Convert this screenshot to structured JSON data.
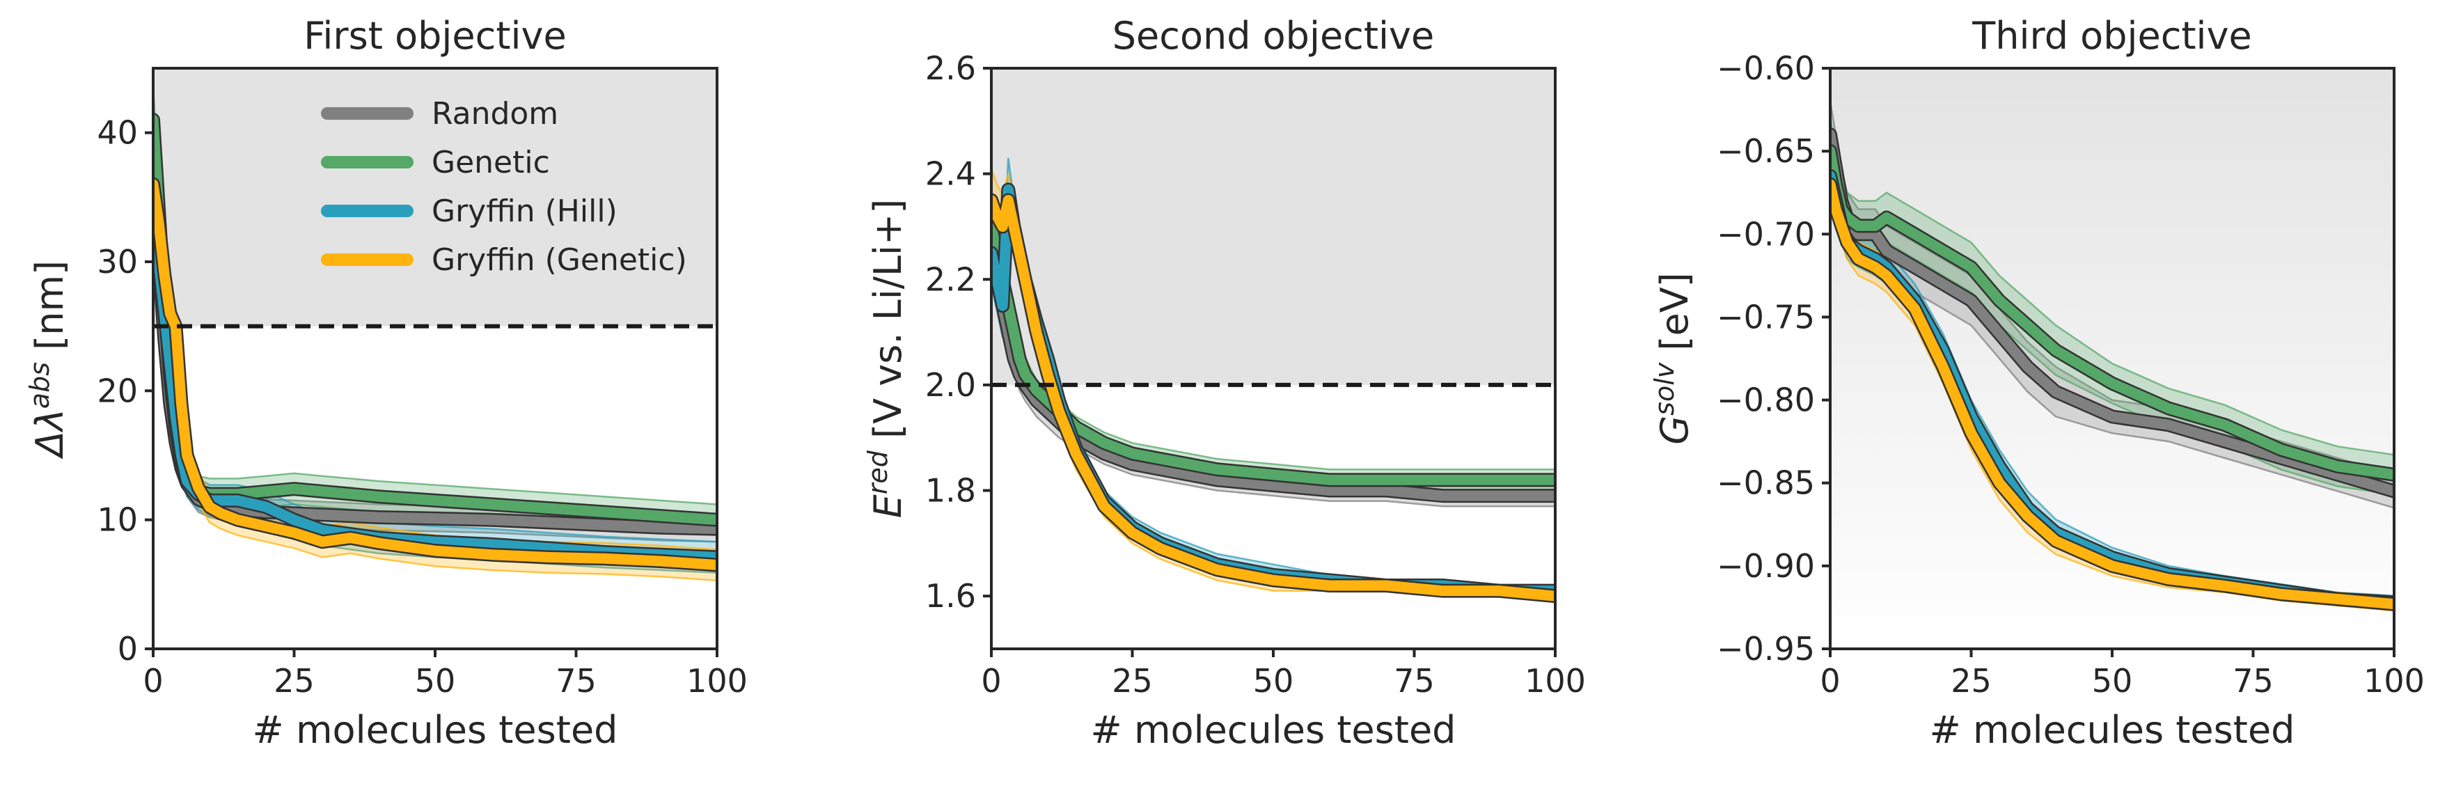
{
  "chart_data": [
    {
      "type": "line",
      "title": "First objective",
      "xlabel": "# molecules tested",
      "ylabel": {
        "base": "Δλ",
        "sup": "abs",
        "suffix": " [nm]"
      },
      "xlim": [
        0,
        100
      ],
      "ylim": [
        0,
        45
      ],
      "xticks": [
        "0",
        "25",
        "50",
        "75",
        "100"
      ],
      "yticks": [
        "0",
        "10",
        "20",
        "30",
        "40"
      ],
      "threshold": 25,
      "shaded_region": [
        25,
        45
      ],
      "legend": {
        "placement": "top-right",
        "entries": [
          "Random",
          "Genetic",
          "Gryffin (Hill)",
          "Gryffin (Genetic)"
        ]
      },
      "series": [
        {
          "name": "Random",
          "color": "#808080",
          "x": [
            0,
            1,
            2,
            3,
            4,
            5,
            6,
            8,
            10,
            12,
            15,
            20,
            25,
            30,
            40,
            50,
            60,
            70,
            80,
            90,
            100
          ],
          "y": [
            37,
            30,
            24,
            19,
            16,
            14,
            12.8,
            11.6,
            11.2,
            11,
            10.8,
            10.6,
            10.5,
            10.4,
            10.2,
            10.1,
            10,
            9.8,
            9.6,
            9.4,
            9.3
          ],
          "band": [
            1.0,
            1.2,
            1.2,
            1.2,
            1.1,
            1.0,
            1.0,
            1.0,
            1.0,
            1.0,
            1.0,
            1.0,
            1.0,
            1.0,
            1.0,
            1.0,
            1.0,
            1.0,
            1.0,
            1.0,
            1.0
          ]
        },
        {
          "name": "Genetic",
          "color": "#55a868",
          "x": [
            0,
            1,
            2,
            3,
            4,
            5,
            6,
            8,
            10,
            12,
            15,
            20,
            25,
            30,
            40,
            50,
            60,
            70,
            80,
            90,
            100
          ],
          "y": [
            41,
            34,
            27,
            21,
            17,
            14.5,
            13,
            12.2,
            12,
            12,
            12,
            12.2,
            12.4,
            12.2,
            11.8,
            11.5,
            11.2,
            10.9,
            10.6,
            10.3,
            10
          ],
          "band": [
            2.5,
            2.5,
            2.0,
            1.8,
            1.5,
            1.2,
            1.2,
            1.2,
            1.2,
            1.2,
            1.2,
            1.2,
            1.2,
            1.2,
            1.2,
            1.2,
            1.2,
            1.2,
            1.2,
            1.2,
            1.2
          ]
        },
        {
          "name": "Gryffin (Hill)",
          "color": "#2a9fbc",
          "x": [
            0,
            1,
            2,
            3,
            4,
            5,
            6,
            8,
            10,
            12,
            15,
            20,
            25,
            30,
            40,
            50,
            60,
            70,
            80,
            90,
            100
          ],
          "y": [
            35,
            30,
            26,
            22,
            18,
            15,
            13,
            12,
            11.5,
            11.5,
            11.5,
            11,
            10,
            9.2,
            8.6,
            8.3,
            8.1,
            7.8,
            7.5,
            7.3,
            7.1
          ],
          "band": [
            1.5,
            1.5,
            1.4,
            1.3,
            1.2,
            1.2,
            1.2,
            1.2,
            1.2,
            1.2,
            1.2,
            1.2,
            1.2,
            1.2,
            1.2,
            1.2,
            1.2,
            1.2,
            1.2,
            1.2,
            1.2
          ]
        },
        {
          "name": "Gryffin (Genetic)",
          "color": "#ffb30f",
          "x": [
            0,
            1,
            2,
            3,
            4,
            5,
            6,
            8,
            10,
            12,
            15,
            20,
            25,
            30,
            35,
            40,
            50,
            60,
            70,
            80,
            90,
            100
          ],
          "y": [
            36,
            33,
            29,
            26,
            25,
            19,
            15,
            12.5,
            11,
            10.5,
            10,
            9.5,
            9,
            8.3,
            8.6,
            8.2,
            7.6,
            7.3,
            7.1,
            7.0,
            6.8,
            6.5
          ],
          "band": [
            1.5,
            1.5,
            1.4,
            1.3,
            1.2,
            1.2,
            1.2,
            1.2,
            1.2,
            1.2,
            1.2,
            1.2,
            1.2,
            1.2,
            1.2,
            1.2,
            1.2,
            1.2,
            1.2,
            1.2,
            1.2,
            1.2
          ]
        }
      ]
    },
    {
      "type": "line",
      "title": "Second objective",
      "xlabel": "# molecules tested",
      "ylabel": {
        "base": "E",
        "sup": "red",
        "suffix": " [V vs. Li/Li+]"
      },
      "xlim": [
        0,
        100
      ],
      "ylim": [
        1.5,
        2.6
      ],
      "xticks": [
        "0",
        "25",
        "50",
        "75",
        "100"
      ],
      "yticks": [
        "1.6",
        "1.8",
        "2.0",
        "2.2",
        "2.4",
        "2.6"
      ],
      "threshold": 2.0,
      "shaded_region": [
        2.0,
        2.6
      ],
      "series": [
        {
          "name": "Random",
          "color": "#808080",
          "x": [
            0,
            1,
            2,
            3,
            4,
            5,
            6,
            8,
            10,
            12,
            15,
            20,
            25,
            30,
            40,
            50,
            60,
            70,
            80,
            90,
            100
          ],
          "y": [
            2.3,
            2.2,
            2.15,
            2.1,
            2.05,
            2.02,
            2.0,
            1.97,
            1.95,
            1.93,
            1.9,
            1.87,
            1.85,
            1.84,
            1.82,
            1.81,
            1.8,
            1.8,
            1.79,
            1.79,
            1.79
          ],
          "band": [
            0.04,
            0.04,
            0.04,
            0.04,
            0.03,
            0.03,
            0.03,
            0.03,
            0.03,
            0.03,
            0.02,
            0.02,
            0.02,
            0.02,
            0.02,
            0.02,
            0.02,
            0.02,
            0.02,
            0.02,
            0.02
          ]
        },
        {
          "name": "Genetic",
          "color": "#55a868",
          "x": [
            0,
            1,
            2,
            3,
            4,
            5,
            6,
            8,
            10,
            12,
            15,
            20,
            25,
            30,
            40,
            50,
            60,
            70,
            80,
            90,
            100
          ],
          "y": [
            2.3,
            2.25,
            2.2,
            2.15,
            2.1,
            2.05,
            2.02,
            1.99,
            1.97,
            1.95,
            1.92,
            1.89,
            1.87,
            1.86,
            1.84,
            1.83,
            1.82,
            1.82,
            1.82,
            1.82,
            1.82
          ],
          "band": [
            0.05,
            0.05,
            0.04,
            0.04,
            0.03,
            0.03,
            0.03,
            0.02,
            0.02,
            0.02,
            0.02,
            0.02,
            0.02,
            0.02,
            0.02,
            0.02,
            0.02,
            0.02,
            0.02,
            0.02,
            0.02
          ]
        },
        {
          "name": "Gryffin (Hill)",
          "color": "#2a9fbc",
          "x": [
            0,
            1,
            2,
            3,
            4,
            5,
            6,
            8,
            10,
            12,
            15,
            20,
            25,
            30,
            40,
            50,
            60,
            70,
            80,
            90,
            100
          ],
          "y": [
            2.25,
            2.2,
            2.15,
            2.37,
            2.3,
            2.25,
            2.2,
            2.12,
            2.05,
            1.97,
            1.88,
            1.78,
            1.73,
            1.7,
            1.66,
            1.64,
            1.63,
            1.62,
            1.62,
            1.61,
            1.61
          ],
          "band": [
            0.06,
            0.06,
            0.06,
            0.06,
            0.05,
            0.05,
            0.04,
            0.04,
            0.04,
            0.03,
            0.03,
            0.02,
            0.02,
            0.02,
            0.02,
            0.02,
            0.01,
            0.01,
            0.01,
            0.01,
            0.01
          ]
        },
        {
          "name": "Gryffin (Genetic)",
          "color": "#ffb30f",
          "x": [
            0,
            1,
            2,
            3,
            4,
            5,
            6,
            8,
            10,
            12,
            15,
            20,
            25,
            30,
            40,
            50,
            60,
            70,
            80,
            90,
            100
          ],
          "y": [
            2.35,
            2.32,
            2.3,
            2.35,
            2.3,
            2.25,
            2.2,
            2.1,
            2.02,
            1.95,
            1.87,
            1.77,
            1.72,
            1.69,
            1.65,
            1.63,
            1.62,
            1.62,
            1.61,
            1.61,
            1.6
          ],
          "band": [
            0.06,
            0.06,
            0.06,
            0.05,
            0.05,
            0.05,
            0.04,
            0.04,
            0.04,
            0.03,
            0.03,
            0.02,
            0.02,
            0.02,
            0.02,
            0.02,
            0.01,
            0.01,
            0.01,
            0.01,
            0.01
          ]
        }
      ]
    },
    {
      "type": "line",
      "title": "Third objective",
      "xlabel": "# molecules tested",
      "ylabel": {
        "base": "G",
        "sup": "solv",
        "suffix": " [eV]"
      },
      "xlim": [
        0,
        100
      ],
      "ylim": [
        -0.95,
        -0.6
      ],
      "xticks": [
        "0",
        "25",
        "50",
        "75",
        "100"
      ],
      "yticks": [
        "−0.95",
        "−0.90",
        "−0.85",
        "−0.80",
        "−0.75",
        "−0.70",
        "−0.65",
        "−0.60"
      ],
      "gradient_background": true,
      "series": [
        {
          "name": "Random",
          "color": "#808080",
          "x": [
            0,
            1,
            2,
            3,
            5,
            8,
            10,
            15,
            20,
            25,
            30,
            35,
            40,
            50,
            60,
            70,
            80,
            90,
            100
          ],
          "y": [
            -0.64,
            -0.66,
            -0.68,
            -0.69,
            -0.7,
            -0.7,
            -0.71,
            -0.72,
            -0.73,
            -0.74,
            -0.76,
            -0.78,
            -0.795,
            -0.81,
            -0.815,
            -0.825,
            -0.835,
            -0.845,
            -0.855
          ],
          "band": [
            0.02,
            0.02,
            0.02,
            0.015,
            0.015,
            0.015,
            0.015,
            0.015,
            0.015,
            0.015,
            0.015,
            0.015,
            0.015,
            0.01,
            0.01,
            0.01,
            0.01,
            0.01,
            0.01
          ]
        },
        {
          "name": "Genetic",
          "color": "#55a868",
          "x": [
            0,
            1,
            2,
            3,
            5,
            8,
            10,
            15,
            20,
            25,
            30,
            35,
            40,
            50,
            60,
            70,
            80,
            90,
            100
          ],
          "y": [
            -0.65,
            -0.67,
            -0.685,
            -0.69,
            -0.695,
            -0.695,
            -0.69,
            -0.7,
            -0.71,
            -0.72,
            -0.74,
            -0.755,
            -0.77,
            -0.79,
            -0.805,
            -0.815,
            -0.83,
            -0.84,
            -0.845
          ],
          "band": [
            0.02,
            0.02,
            0.02,
            0.015,
            0.015,
            0.015,
            0.015,
            0.015,
            0.015,
            0.015,
            0.015,
            0.015,
            0.015,
            0.012,
            0.012,
            0.012,
            0.012,
            0.012,
            0.012
          ]
        },
        {
          "name": "Gryffin (Hill)",
          "color": "#2a9fbc",
          "x": [
            0,
            1,
            2,
            3,
            5,
            8,
            10,
            15,
            20,
            25,
            30,
            35,
            40,
            50,
            60,
            70,
            80,
            90,
            100
          ],
          "y": [
            -0.665,
            -0.68,
            -0.695,
            -0.705,
            -0.71,
            -0.715,
            -0.72,
            -0.74,
            -0.77,
            -0.81,
            -0.84,
            -0.865,
            -0.88,
            -0.895,
            -0.905,
            -0.91,
            -0.915,
            -0.92,
            -0.922
          ],
          "band": [
            0.01,
            0.01,
            0.01,
            0.01,
            0.01,
            0.01,
            0.01,
            0.01,
            0.01,
            0.01,
            0.01,
            0.01,
            0.008,
            0.006,
            0.005,
            0.004,
            0.004,
            0.004,
            0.004
          ]
        },
        {
          "name": "Gryffin (Genetic)",
          "color": "#ffb30f",
          "x": [
            0,
            1,
            2,
            3,
            5,
            8,
            10,
            15,
            20,
            25,
            30,
            35,
            40,
            50,
            60,
            70,
            80,
            90,
            100
          ],
          "y": [
            -0.67,
            -0.685,
            -0.695,
            -0.705,
            -0.715,
            -0.72,
            -0.725,
            -0.745,
            -0.78,
            -0.82,
            -0.85,
            -0.87,
            -0.885,
            -0.9,
            -0.908,
            -0.912,
            -0.917,
            -0.92,
            -0.923
          ],
          "band": [
            0.01,
            0.01,
            0.01,
            0.01,
            0.01,
            0.01,
            0.01,
            0.01,
            0.01,
            0.01,
            0.01,
            0.01,
            0.008,
            0.006,
            0.005,
            0.004,
            0.004,
            0.004,
            0.004
          ]
        }
      ]
    }
  ]
}
